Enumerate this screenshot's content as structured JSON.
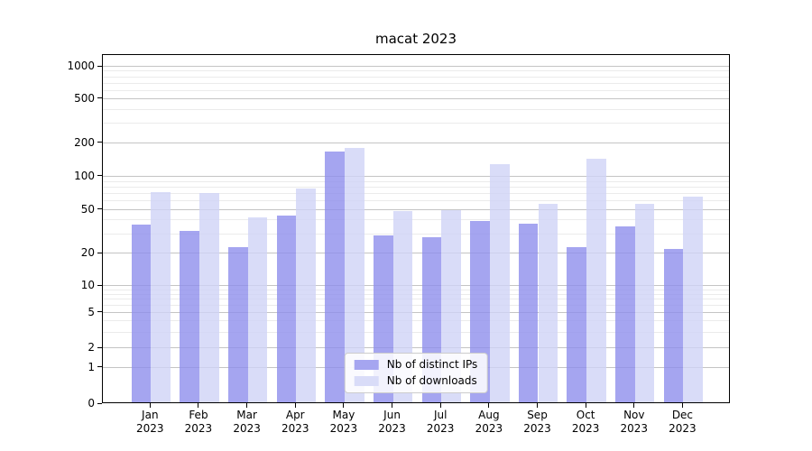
{
  "chart_data": {
    "type": "bar",
    "title": "macat 2023",
    "categories": [
      "Jan",
      "Feb",
      "Mar",
      "Apr",
      "May",
      "Jun",
      "Jul",
      "Aug",
      "Sep",
      "Oct",
      "Nov",
      "Dec"
    ],
    "category_year": "2023",
    "series": [
      {
        "name": "Nb of distinct IPs",
        "color": "#a5a5f0",
        "color_rgba": "rgba(142,142,236,0.8)",
        "values": [
          35,
          31,
          22,
          43,
          163,
          28,
          27,
          38,
          36,
          22,
          34,
          21
        ]
      },
      {
        "name": "Nb of downloads",
        "color": "#d9dcf8",
        "color_rgba": "rgba(208,211,246,0.8)",
        "values": [
          70,
          69,
          41,
          75,
          176,
          47,
          48,
          125,
          55,
          141,
          55,
          63
        ]
      }
    ],
    "yaxis": {
      "scale": "symlog-like",
      "ticks": [
        0,
        1,
        2,
        5,
        10,
        20,
        50,
        100,
        200,
        500,
        1000
      ],
      "minor_ticks": [
        3,
        4,
        6,
        7,
        8,
        9,
        30,
        40,
        60,
        70,
        80,
        90,
        300,
        400,
        600,
        700,
        800,
        900
      ],
      "anchors": [
        [
          0,
          0
        ],
        [
          1,
          0.1034
        ],
        [
          2,
          0.1602
        ],
        [
          5,
          0.261
        ],
        [
          10,
          0.3385
        ],
        [
          20,
          0.4315
        ],
        [
          50,
          0.5568
        ],
        [
          100,
          0.6512
        ],
        [
          200,
          0.7468
        ],
        [
          500,
          0.8734
        ],
        [
          1000,
          0.9664
        ]
      ],
      "ylim": [
        0,
        1200
      ]
    },
    "grid": {
      "major_color": "#c4c4c4",
      "minor_color": "#ebebeb"
    },
    "legend": {
      "position": "lower center",
      "entries": [
        "Nb of distinct IPs",
        "Nb of downloads"
      ]
    }
  }
}
